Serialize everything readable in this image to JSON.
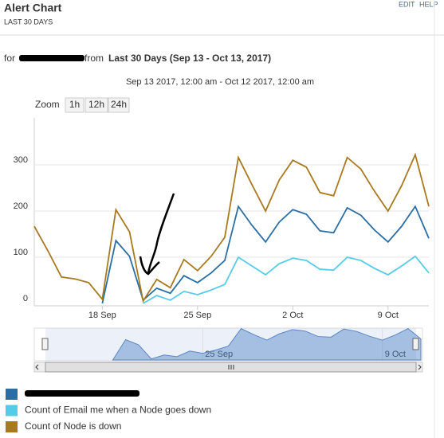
{
  "header": {
    "title": "Alert Chart",
    "subtitle": "LAST 30 DAYS",
    "links": [
      "EDIT",
      "HELP"
    ]
  },
  "filter": {
    "prefix": "for",
    "middle": "from",
    "range": "Last 30 Days (Sep 13 - Oct 13, 2017)"
  },
  "zoom": {
    "label": "Zoom",
    "buttons": [
      "1h",
      "12h",
      "24h"
    ]
  },
  "chart_data": {
    "type": "line",
    "subtitle": "Sep 13 2017, 12:00 am - Oct 12 2017, 12:00 am",
    "x": [
      "2017-09-13",
      "2017-09-14",
      "2017-09-15",
      "2017-09-16",
      "2017-09-17",
      "2017-09-18",
      "2017-09-19",
      "2017-09-20",
      "2017-09-21",
      "2017-09-22",
      "2017-09-23",
      "2017-09-24",
      "2017-09-25",
      "2017-09-26",
      "2017-09-27",
      "2017-09-28",
      "2017-09-29",
      "2017-09-30",
      "2017-10-01",
      "2017-10-02",
      "2017-10-03",
      "2017-10-04",
      "2017-10-05",
      "2017-10-06",
      "2017-10-07",
      "2017-10-08",
      "2017-10-09",
      "2017-10-10",
      "2017-10-11",
      "2017-10-12"
    ],
    "xlim": [
      "2017-09-13",
      "2017-10-12"
    ],
    "xticks": [
      {
        "value": "2017-09-18",
        "label": "18 Sep"
      },
      {
        "value": "2017-09-25",
        "label": "25 Sep"
      },
      {
        "value": "2017-10-02",
        "label": "2 Oct"
      },
      {
        "value": "2017-10-09",
        "label": "9 Oct"
      }
    ],
    "navigator_ticks": [
      {
        "value": "2017-09-25",
        "label": "25 Sep"
      },
      {
        "value": "2017-10-09",
        "label": "9 Oct"
      }
    ],
    "ylim": [
      0,
      400
    ],
    "yticks": [
      0,
      100,
      200,
      300
    ],
    "grid": true,
    "series": [
      {
        "color": "#2a6ea6",
        "values": [
          null,
          null,
          null,
          null,
          null,
          0,
          136,
          102,
          7,
          33,
          22,
          60,
          45,
          66,
          93,
          210,
          169,
          133,
          176,
          203,
          193,
          157,
          153,
          207,
          191,
          159,
          133,
          167,
          210,
          141
        ]
      },
      {
        "name": "Count of Email me when a Node goes down",
        "color": "#55cbe8",
        "values": [
          null,
          null,
          null,
          null,
          null,
          null,
          null,
          null,
          0,
          17,
          7,
          26,
          19,
          29,
          41,
          100,
          81,
          62,
          86,
          98,
          93,
          74,
          72,
          100,
          93,
          76,
          62,
          81,
          102,
          66
        ]
      },
      {
        "name": "Count of Node is down",
        "color": "#a87a1e",
        "values": [
          167,
          114,
          57,
          53,
          45,
          9,
          203,
          155,
          5,
          52,
          34,
          95,
          71,
          102,
          143,
          316,
          257,
          200,
          267,
          310,
          295,
          240,
          233,
          316,
          291,
          243,
          200,
          255,
          322,
          210
        ]
      }
    ]
  }
}
